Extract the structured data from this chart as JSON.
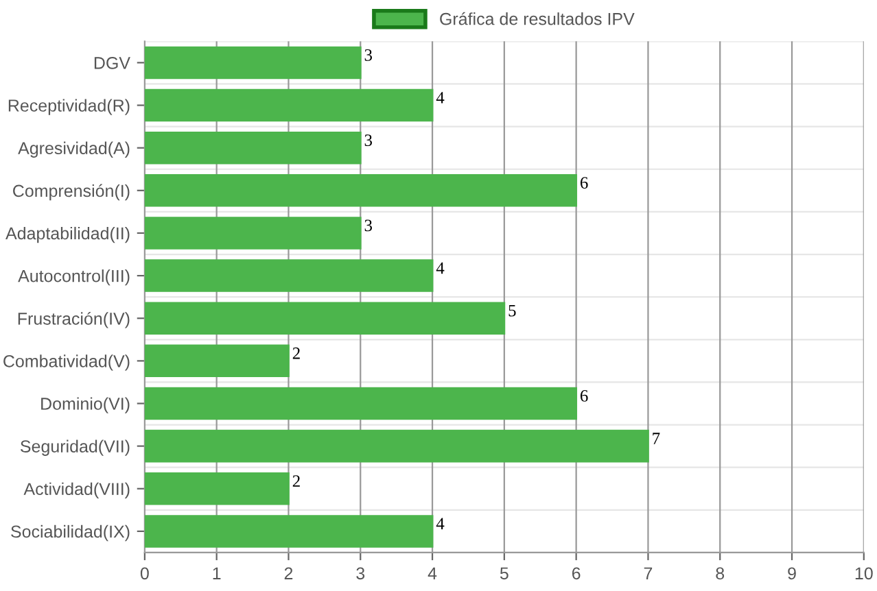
{
  "chart_data": {
    "type": "bar",
    "orientation": "horizontal",
    "categories": [
      "DGV",
      "Receptividad(R)",
      "Agresividad(A)",
      "Comprensión(I)",
      "Adaptabilidad(II)",
      "Autocontrol(III)",
      "Frustración(IV)",
      "Combatividad(V)",
      "Dominio(VI)",
      "Seguridad(VII)",
      "Actividad(VIII)",
      "Sociabilidad(IX)"
    ],
    "series": [
      {
        "name": "Gráfica de resultados IPV",
        "color": "#4cb54c",
        "values": [
          3,
          4,
          3,
          6,
          3,
          4,
          5,
          2,
          6,
          7,
          2,
          4
        ]
      }
    ],
    "xlim": [
      0,
      10
    ],
    "xticks": [
      0,
      1,
      2,
      3,
      4,
      5,
      6,
      7,
      8,
      9,
      10
    ],
    "grid": true,
    "legend": "top",
    "data_labels": true
  }
}
